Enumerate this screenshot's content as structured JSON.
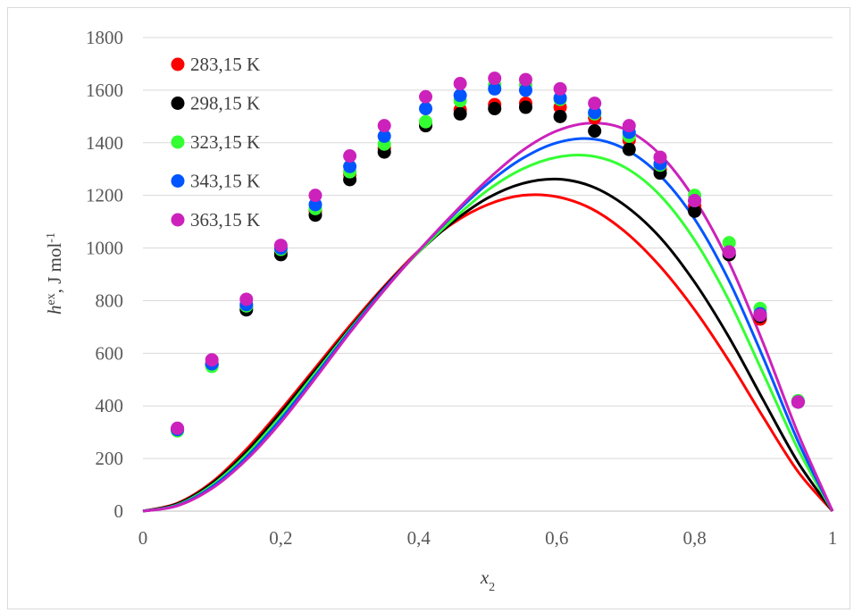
{
  "chart_data": {
    "type": "scatter",
    "xlabel": "x",
    "xlabel_sub": "2",
    "ylabel": "h",
    "ylabel_sup": "ex",
    "ylabel_rest": ", J mol",
    "ylabel_unit_sup": "-1",
    "xlim": [
      0,
      1
    ],
    "ylim": [
      0,
      1800
    ],
    "xticks": [
      0,
      0.2,
      0.4,
      0.6,
      0.8,
      1
    ],
    "xtick_labels": [
      "0",
      "0,2",
      "0,4",
      "0,6",
      "0,8",
      "1"
    ],
    "yticks": [
      0,
      200,
      400,
      600,
      800,
      1000,
      1200,
      1400,
      1600,
      1800
    ],
    "ytick_labels": [
      "0",
      "200",
      "400",
      "600",
      "800",
      "1000",
      "1200",
      "1400",
      "1600",
      "1800"
    ],
    "grid": "horizontal",
    "legend_position": "top-left",
    "series": [
      {
        "name": "283,15 K",
        "color": "#ff0000",
        "points": {
          "x": [
            0.05,
            0.1,
            0.15,
            0.2,
            0.25,
            0.3,
            0.35,
            0.41,
            0.46,
            0.51,
            0.555,
            0.605,
            0.655,
            0.705,
            0.75,
            0.8,
            0.85,
            0.895,
            0.95
          ],
          "y": [
            310,
            560,
            775,
            985,
            1140,
            1280,
            1380,
            1475,
            1525,
            1545,
            1550,
            1535,
            1495,
            1410,
            1300,
            1160,
            975,
            730,
            415
          ]
        },
        "curve": {
          "x": [
            0,
            0.05,
            0.1,
            0.15,
            0.2,
            0.25,
            0.3,
            0.35,
            0.4,
            0.45,
            0.5,
            0.55,
            0.6,
            0.65,
            0.7,
            0.75,
            0.8,
            0.85,
            0.9,
            0.95,
            1
          ],
          "y": [
            0,
            30,
            110,
            235,
            385,
            545,
            705,
            855,
            990,
            1095,
            1165,
            1200,
            1195,
            1150,
            1060,
            930,
            765,
            570,
            355,
            150,
            0
          ]
        }
      },
      {
        "name": "298,15 K",
        "color": "#000000",
        "points": {
          "x": [
            0.05,
            0.1,
            0.15,
            0.2,
            0.25,
            0.3,
            0.35,
            0.41,
            0.46,
            0.51,
            0.555,
            0.605,
            0.655,
            0.705,
            0.75,
            0.8,
            0.85,
            0.895,
            0.95
          ],
          "y": [
            310,
            555,
            765,
            975,
            1125,
            1260,
            1365,
            1465,
            1510,
            1530,
            1535,
            1500,
            1445,
            1375,
            1285,
            1140,
            975,
            740,
            415
          ]
        },
        "curve": {
          "x": [
            0,
            0.05,
            0.1,
            0.15,
            0.2,
            0.25,
            0.3,
            0.35,
            0.4,
            0.45,
            0.5,
            0.55,
            0.6,
            0.65,
            0.7,
            0.75,
            0.8,
            0.85,
            0.9,
            0.95,
            1
          ],
          "y": [
            0,
            28,
            105,
            225,
            375,
            535,
            695,
            850,
            985,
            1100,
            1190,
            1245,
            1262,
            1235,
            1160,
            1040,
            870,
            660,
            420,
            185,
            0
          ]
        }
      },
      {
        "name": "323,15 K",
        "color": "#33ff33",
        "points": {
          "x": [
            0.05,
            0.1,
            0.15,
            0.2,
            0.25,
            0.3,
            0.35,
            0.41,
            0.46,
            0.51,
            0.555,
            0.605,
            0.655,
            0.705,
            0.75,
            0.8,
            0.85,
            0.895,
            0.95
          ],
          "y": [
            305,
            550,
            780,
            995,
            1150,
            1290,
            1395,
            1480,
            1560,
            1620,
            1620,
            1565,
            1510,
            1425,
            1315,
            1200,
            1020,
            770,
            420
          ]
        },
        "curve": {
          "x": [
            0,
            0.05,
            0.1,
            0.15,
            0.2,
            0.25,
            0.3,
            0.35,
            0.4,
            0.45,
            0.5,
            0.55,
            0.6,
            0.65,
            0.7,
            0.75,
            0.8,
            0.85,
            0.9,
            0.95,
            1
          ],
          "y": [
            0,
            24,
            98,
            215,
            362,
            525,
            690,
            845,
            985,
            1110,
            1220,
            1300,
            1345,
            1350,
            1305,
            1200,
            1030,
            800,
            520,
            235,
            0
          ]
        }
      },
      {
        "name": "343,15 K",
        "color": "#0055ff",
        "points": {
          "x": [
            0.05,
            0.1,
            0.15,
            0.2,
            0.25,
            0.3,
            0.35,
            0.41,
            0.46,
            0.51,
            0.555,
            0.605,
            0.655,
            0.705,
            0.75,
            0.8,
            0.85,
            0.895,
            0.95
          ],
          "y": [
            310,
            560,
            785,
            1000,
            1165,
            1310,
            1425,
            1530,
            1580,
            1605,
            1600,
            1570,
            1515,
            1440,
            1320,
            1180,
            985,
            750,
            415
          ]
        },
        "curve": {
          "x": [
            0,
            0.05,
            0.1,
            0.15,
            0.2,
            0.25,
            0.3,
            0.35,
            0.4,
            0.45,
            0.5,
            0.55,
            0.6,
            0.65,
            0.7,
            0.75,
            0.8,
            0.85,
            0.9,
            0.95,
            1
          ],
          "y": [
            0,
            22,
            92,
            205,
            350,
            515,
            685,
            845,
            990,
            1125,
            1245,
            1340,
            1400,
            1415,
            1375,
            1275,
            1110,
            875,
            580,
            265,
            0
          ]
        }
      },
      {
        "name": "363,15 K",
        "color": "#cc22bb",
        "points": {
          "x": [
            0.05,
            0.1,
            0.15,
            0.2,
            0.25,
            0.3,
            0.35,
            0.41,
            0.46,
            0.51,
            0.555,
            0.605,
            0.655,
            0.705,
            0.75,
            0.8,
            0.85,
            0.895,
            0.95
          ],
          "y": [
            315,
            575,
            805,
            1010,
            1200,
            1350,
            1465,
            1575,
            1625,
            1645,
            1640,
            1605,
            1550,
            1465,
            1345,
            1180,
            985,
            745,
            415
          ]
        },
        "curve": {
          "x": [
            0,
            0.05,
            0.1,
            0.15,
            0.2,
            0.25,
            0.3,
            0.35,
            0.4,
            0.45,
            0.5,
            0.55,
            0.6,
            0.65,
            0.7,
            0.75,
            0.8,
            0.85,
            0.9,
            0.95,
            1
          ],
          "y": [
            0,
            20,
            86,
            195,
            338,
            505,
            678,
            840,
            990,
            1130,
            1260,
            1370,
            1445,
            1475,
            1450,
            1355,
            1185,
            945,
            635,
            295,
            0
          ]
        }
      }
    ]
  }
}
